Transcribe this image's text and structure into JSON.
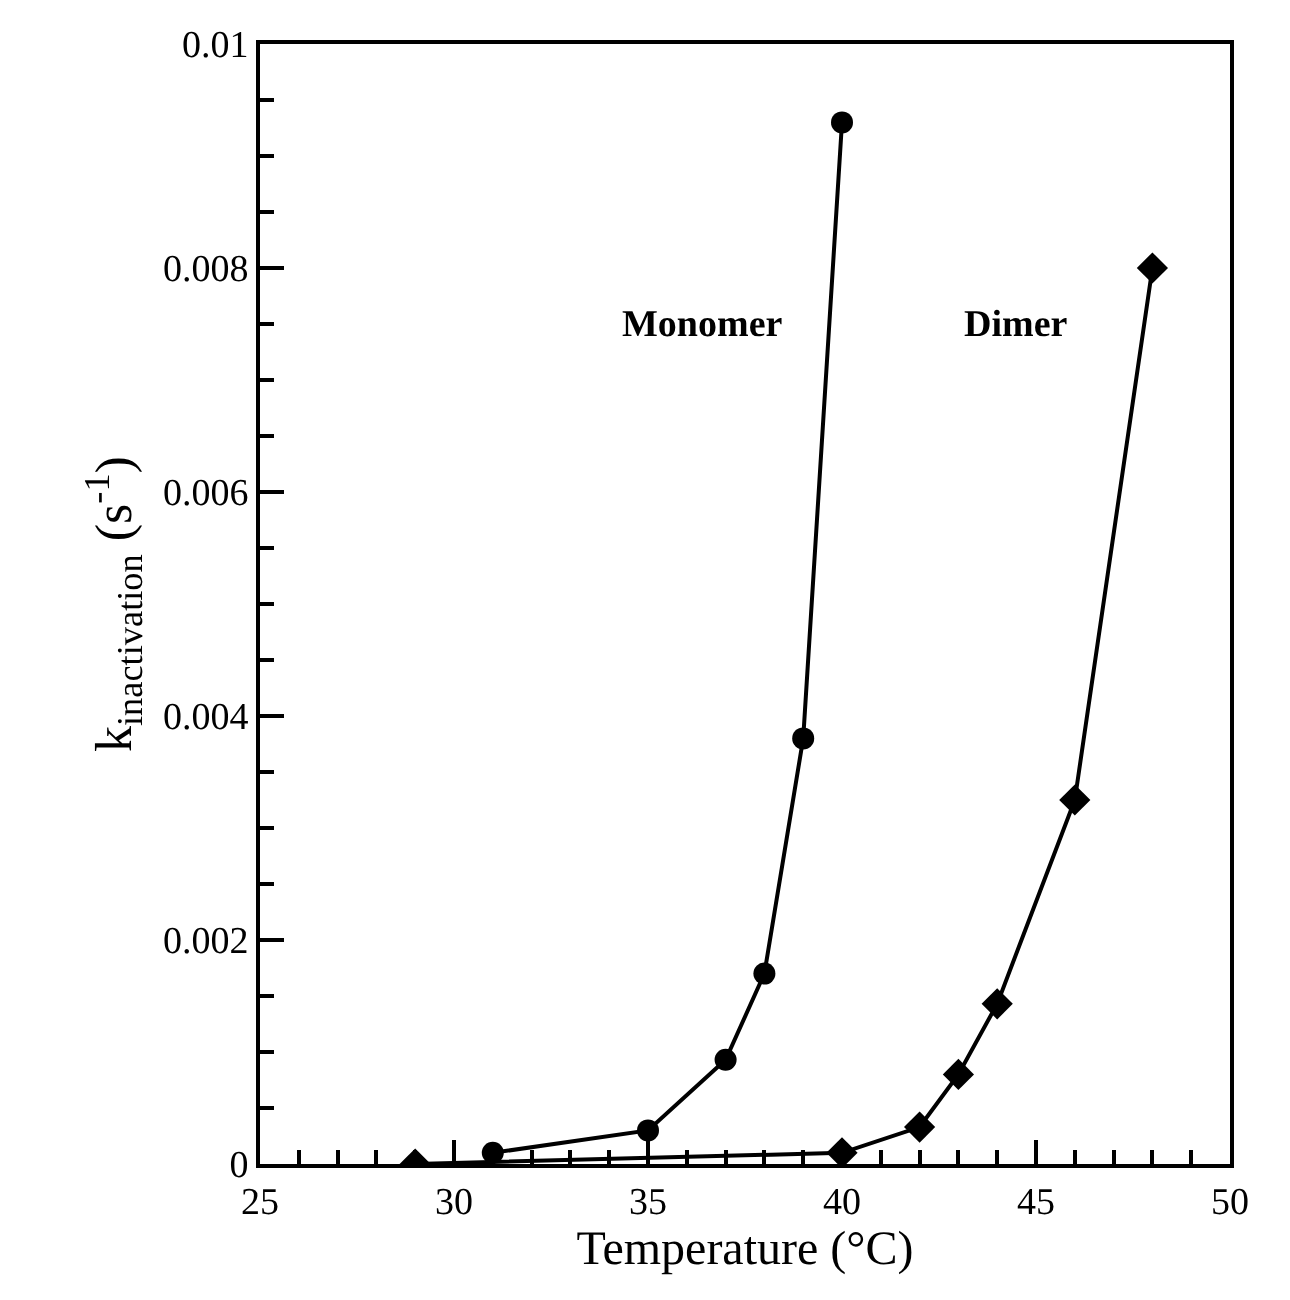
{
  "chart_data": {
    "type": "line",
    "xlabel": "Temperature (°C)",
    "ylabel": "k$_{inactivation}$ (s$^{-1}$)",
    "xlim": [
      25,
      50
    ],
    "xticks": [
      25,
      30,
      35,
      40,
      45,
      50
    ],
    "ylim": [
      0,
      0.01
    ],
    "yticks": [
      0,
      {
        "value": 0.002,
        "label": "0.002"
      },
      {
        "value": 0.004,
        "label": "0.004"
      },
      {
        "value": 0.006,
        "label": "0.006"
      },
      {
        "value": 0.008,
        "label": "0.008"
      },
      0.01
    ],
    "legend": false,
    "series": [
      {
        "name": "Monomer",
        "color": "#000000",
        "marker": "circle",
        "x": [
          31,
          35,
          37,
          38,
          39,
          40
        ],
        "values": [
          0.0001,
          0.0003,
          0.00093,
          0.0017,
          0.0038,
          0.0093
        ]
      },
      {
        "name": "Dimer",
        "color": "#000000",
        "marker": "diamond",
        "x": [
          29,
          40,
          42,
          43,
          44,
          46,
          48
        ],
        "values": [
          0,
          0.0001,
          0.00033,
          0.0008,
          0.00143,
          0.00325,
          0.008
        ]
      }
    ]
  }
}
